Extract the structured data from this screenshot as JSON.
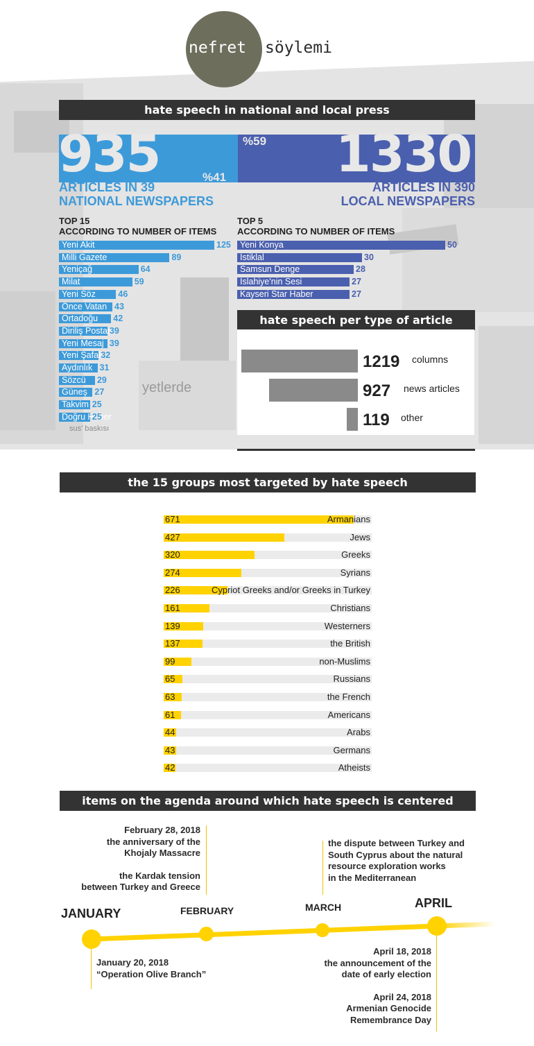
{
  "logo": {
    "left": "nefret",
    "right": "söylemi"
  },
  "colors": {
    "national": "#3d9ad9",
    "local": "#4a5fae",
    "groups": "#ffd200",
    "banner": "#333333",
    "timeline": "#ffd200"
  },
  "sections": {
    "press": "hate speech in national and local press",
    "types": "hate speech per type of article",
    "groups": "the 15 groups most targeted by hate speech",
    "agenda": "items on the agenda around which hate speech is centered"
  },
  "totals": {
    "national_count": "935",
    "national_pct": "%41",
    "national_caption_1": "ARTICLES IN 39",
    "national_caption_2": "NATIONAL NEWSPAPERS",
    "local_count": "1330",
    "local_pct": "%59",
    "local_caption_1": "ARTICLES IN 390",
    "local_caption_2": "LOCAL NEWSPAPERS"
  },
  "national_title_1": "TOP 15",
  "national_title_2": "ACCORDING TO NUMBER OF ITEMS",
  "local_title_1": "TOP 5",
  "local_title_2": "ACCORDING TO NUMBER OF ITEMS",
  "chart_data": [
    {
      "type": "bar",
      "orientation": "horizontal",
      "categories": [
        "Yeni Akit",
        "Milli Gazete",
        "Yeniçağ",
        "Milat",
        "Yeni Söz",
        "Önce Vatan",
        "Ortadoğu",
        "Diriliş Postası",
        "Yeni Mesaj",
        "Yeni Şafak",
        "Aydınlık",
        "Sözcü",
        "Güneş",
        "Takvim",
        "Doğru Haber"
      ],
      "values": [
        125,
        89,
        64,
        59,
        46,
        43,
        42,
        39,
        39,
        32,
        31,
        29,
        27,
        25,
        25
      ],
      "title": "TOP 15 ACCORDING TO NUMBER OF ITEMS"
    },
    {
      "type": "bar",
      "orientation": "horizontal",
      "categories": [
        "Yeni Konya",
        "İstiklal",
        "Samsun Denge",
        "İslahiye'nin Sesi",
        "Kayseri Star Haber"
      ],
      "values": [
        50,
        30,
        28,
        27,
        27
      ],
      "title": "TOP 5 ACCORDING TO NUMBER OF ITEMS"
    },
    {
      "type": "bar",
      "orientation": "horizontal",
      "categories": [
        "columns",
        "news articles",
        "other"
      ],
      "values": [
        1219,
        927,
        119
      ],
      "title": "hate speech per type of article"
    },
    {
      "type": "bar",
      "orientation": "horizontal",
      "categories": [
        "Armanians",
        "Jews",
        "Greeks",
        "Syrians",
        "Cypriot Greeks and/or Greeks in Turkey",
        "Christians",
        "Westerners",
        "the British",
        "non-Muslims",
        "Russians",
        "the French",
        "Americans",
        "Arabs",
        "Germans",
        "Atheists"
      ],
      "values": [
        671,
        427,
        320,
        274,
        226,
        161,
        139,
        137,
        99,
        65,
        63,
        61,
        44,
        43,
        42
      ],
      "title": "the 15 groups most targeted by hate speech"
    }
  ],
  "timeline": {
    "months": [
      "JANUARY",
      "FEBRUARY",
      "MARCH",
      "APRIL"
    ],
    "feb_note_1": "February 28, 2018",
    "feb_note_2": "the anniversary of the",
    "feb_note_3": "Khojaly Massacre",
    "feb_note_4": "the Kardak tension",
    "feb_note_5": "between Turkey and Greece",
    "mar_note_1": "the dispute between Turkey and",
    "mar_note_2": "South Cyprus about the natural",
    "mar_note_3": "resource exploration works",
    "mar_note_4": "in the Mediterranean",
    "jan_note_1": "January 20, 2018",
    "jan_note_2": "“Operation Olive Branch”",
    "apr_note_1": "April 18, 2018",
    "apr_note_2": "the announcement of the",
    "apr_note_3": "date of early election",
    "apr_note_4": "April 24, 2018",
    "apr_note_5": "Armenian Genocide",
    "apr_note_6": "Remembrance Day"
  },
  "background_text": {
    "t1": "sus' baskısı",
    "t2": "yetlerde"
  }
}
